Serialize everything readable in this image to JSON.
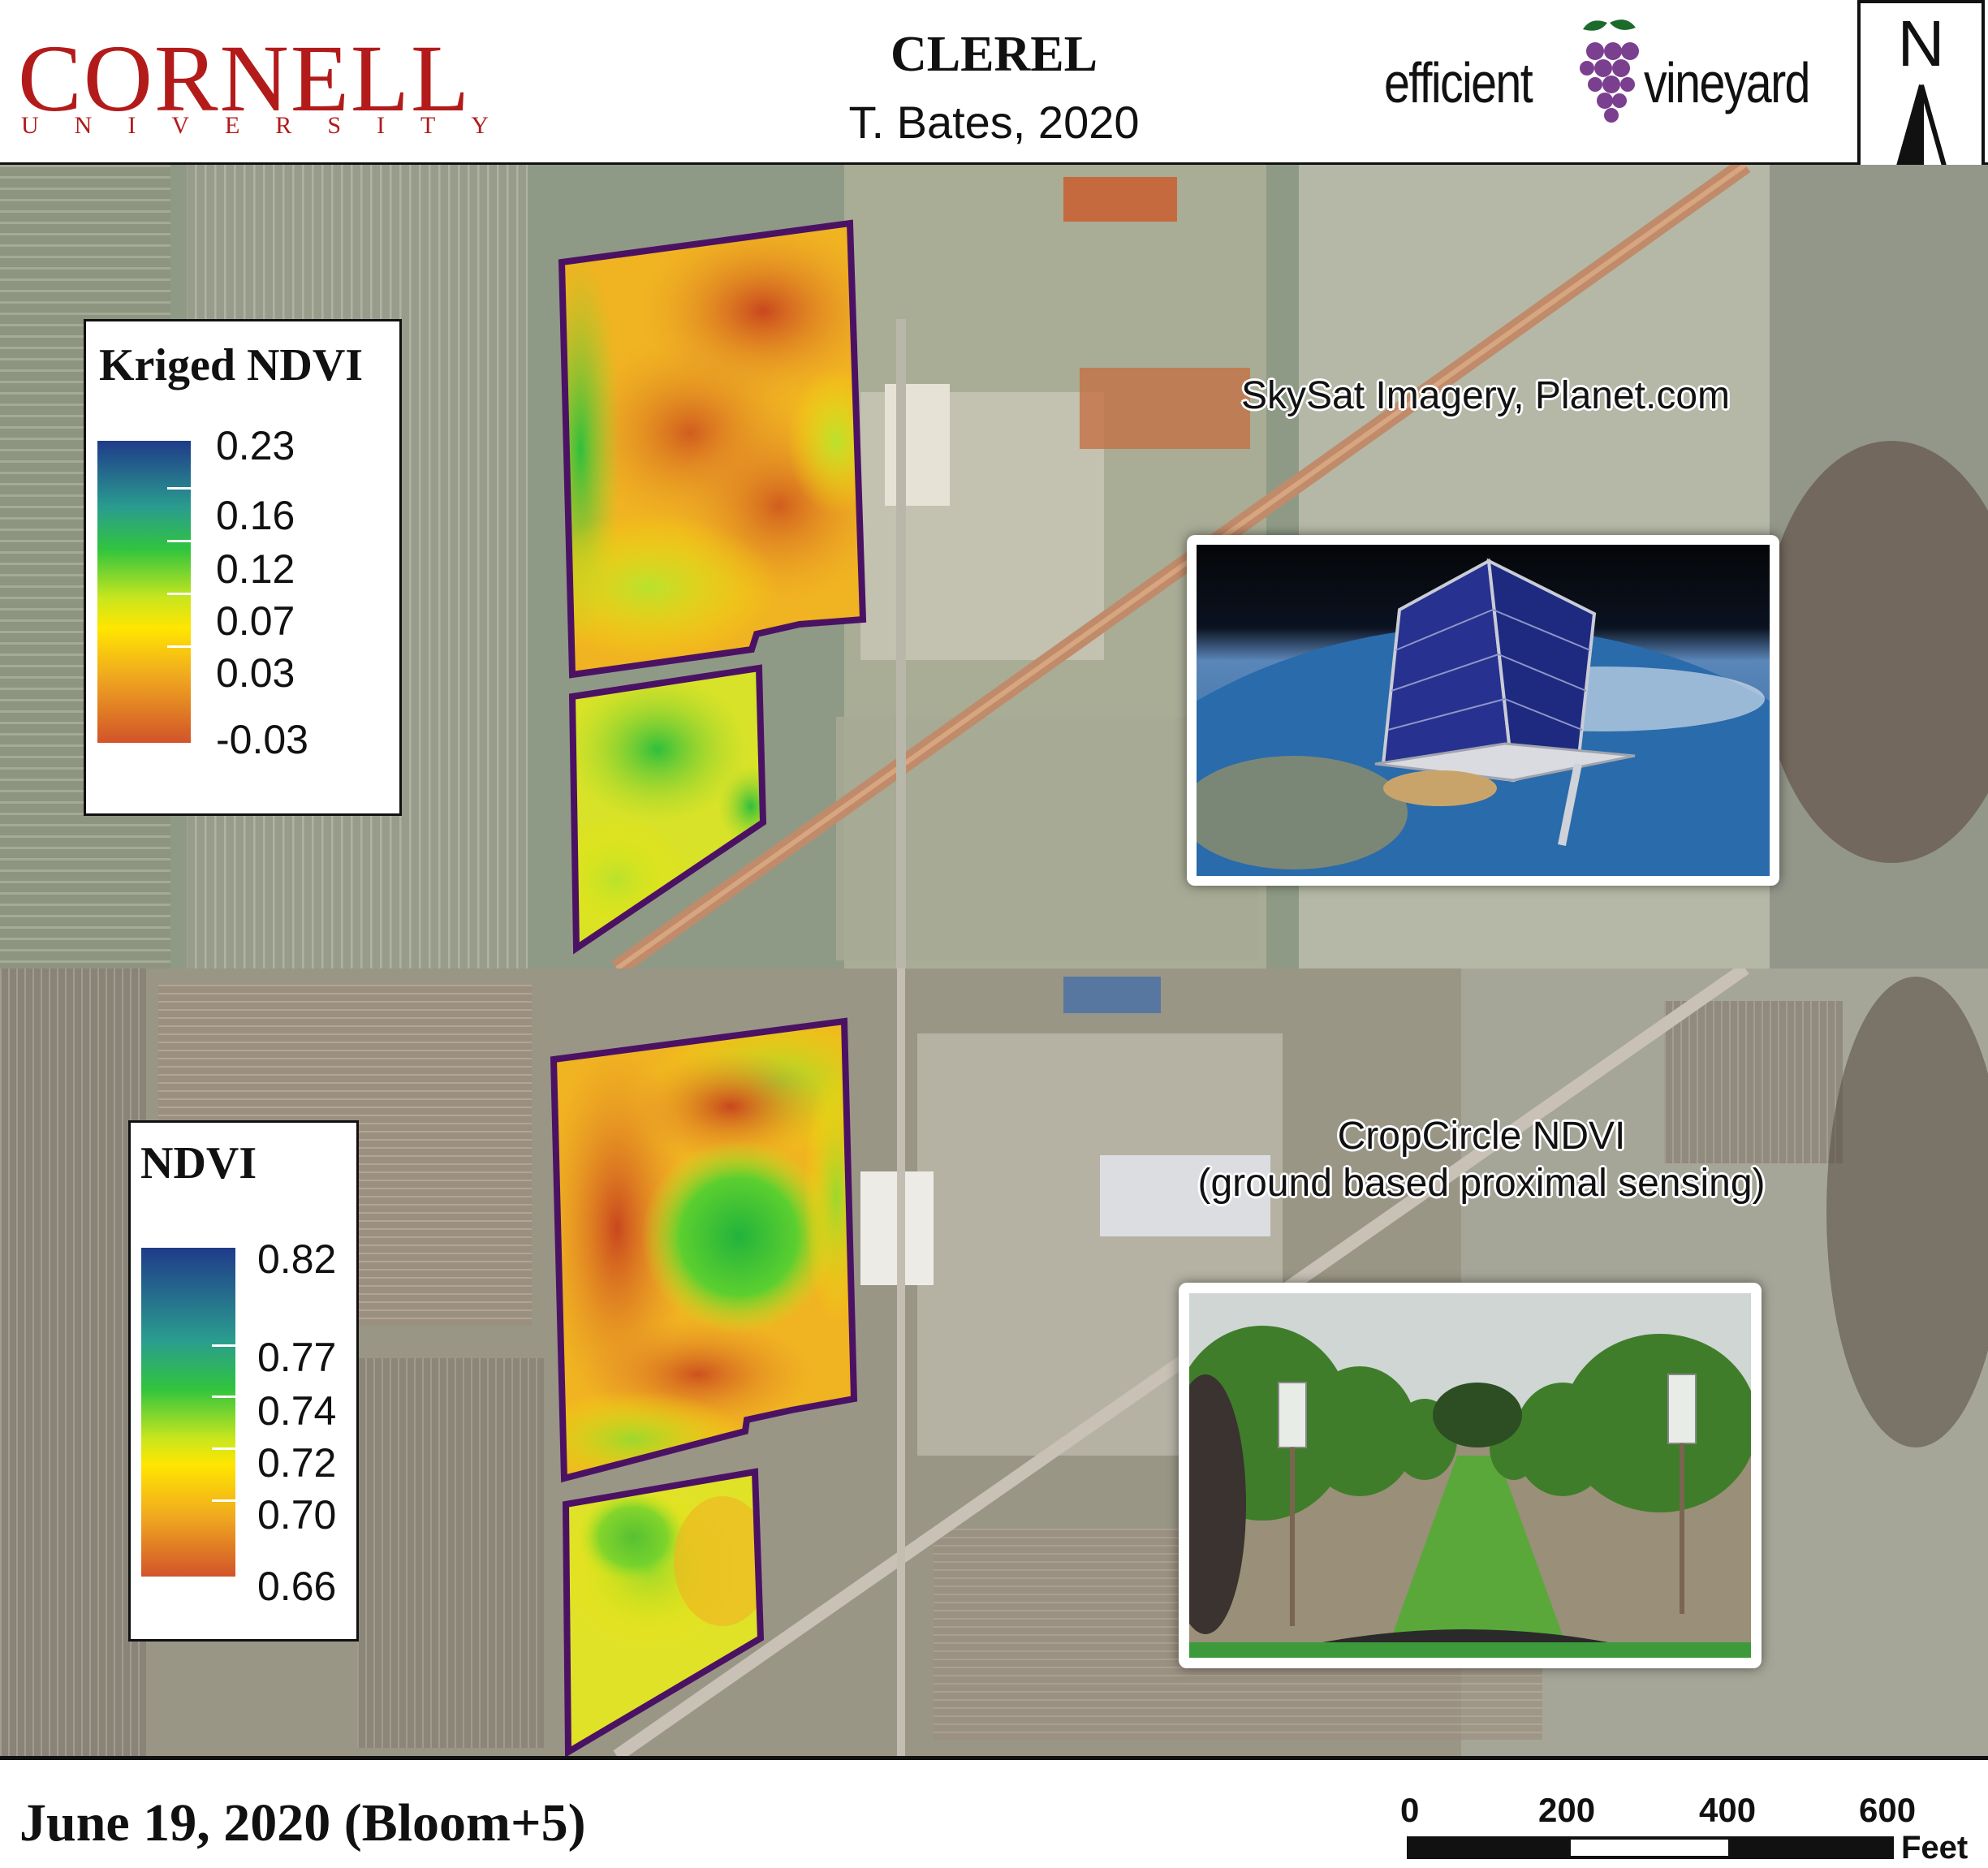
{
  "header": {
    "university_word": "CORNELL",
    "university_sub": "UNIVERSITY",
    "title": "CLEREL",
    "author": "T. Bates, 2020",
    "logo_left": "efficient",
    "logo_right": "vineyard",
    "north_letter": "N"
  },
  "top_panel": {
    "legend_title": "Kriged NDVI",
    "legend_ticks": [
      "0.23",
      "0.16",
      "0.12",
      "0.07",
      "0.03",
      "-0.03"
    ],
    "source_label": "SkySat Imagery, Planet.com",
    "inset_icon": "satellite-icon"
  },
  "bottom_panel": {
    "legend_title": "NDVI",
    "legend_ticks": [
      "0.82",
      "0.77",
      "0.74",
      "0.72",
      "0.70",
      "0.66"
    ],
    "source_label_line1": "CropCircle NDVI",
    "source_label_line2": "(ground based proximal sensing)",
    "inset_icon": "vineyard-sensor-photo-icon"
  },
  "footer": {
    "date": "June 19, 2020 (Bloom+5)",
    "scale_values": [
      "0",
      "200",
      "400",
      "600"
    ],
    "scale_unit": "Feet"
  },
  "colors": {
    "cornell_red": "#b31b1b",
    "field_outline": "#4b1264",
    "ramp_high": "#1f3b8a",
    "ramp_mid": "#ffe600",
    "ramp_low": "#d2532a"
  }
}
